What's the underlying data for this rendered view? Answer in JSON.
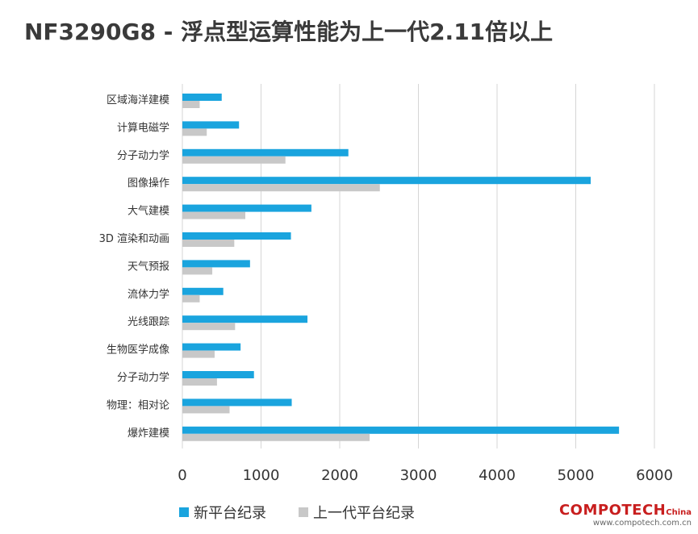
{
  "title": "NF3290G8 - 浮点型运算性能为上一代2.11倍以上",
  "chart_data": {
    "type": "bar",
    "orientation": "horizontal",
    "categories": [
      "区域海洋建模",
      "计算电磁学",
      "分子动力学",
      "图像操作",
      "大气建模",
      "3D 渲染和动画",
      "天气预报",
      "流体力学",
      "光线跟踪",
      "生物医学成像",
      "分子动力学",
      "物理：相对论",
      "爆炸建模"
    ],
    "series": [
      {
        "name": "新平台纪录",
        "color": "#1aa4de",
        "values": [
          500,
          720,
          2110,
          5190,
          1640,
          1380,
          860,
          520,
          1590,
          740,
          910,
          1390,
          5550
        ]
      },
      {
        "name": "上一代平台纪录",
        "color": "#c8c8c8",
        "values": [
          220,
          310,
          1310,
          2510,
          800,
          660,
          380,
          220,
          670,
          410,
          440,
          600,
          2380
        ]
      }
    ],
    "xlim": [
      0,
      6000
    ],
    "xticks": [
      "0",
      "1000",
      "2000",
      "3000",
      "4000",
      "5000",
      "6000"
    ],
    "grid": true,
    "legend_position": "bottom-left"
  },
  "watermark": {
    "brand": "COMPOTECH",
    "suffix": "China",
    "url": "www.compotech.com.cn"
  }
}
